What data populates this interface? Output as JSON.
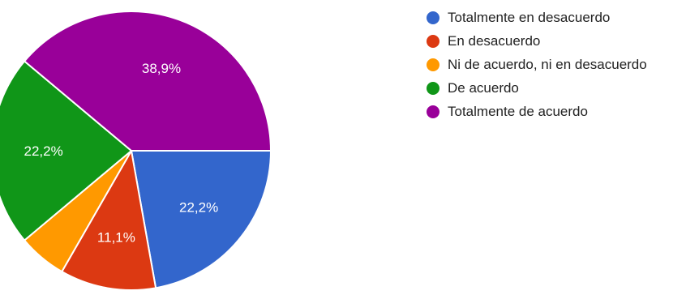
{
  "chart_data": {
    "type": "pie",
    "categories": [
      "Totalmente en desacuerdo",
      "En desacuerdo",
      "Ni de acuerdo, ni en desacuerdo",
      "De acuerdo",
      "Totalmente de acuerdo"
    ],
    "values": [
      22.2,
      11.1,
      5.6,
      22.2,
      38.9
    ],
    "data_labels": [
      "22,2%",
      "11,1%",
      "",
      "22,2%",
      "38,9%"
    ],
    "colors": [
      "#3366CC",
      "#DC3912",
      "#FF9900",
      "#109618",
      "#990099"
    ],
    "start": "3 o'clock",
    "direction": "clockwise",
    "legend_position": "right"
  }
}
